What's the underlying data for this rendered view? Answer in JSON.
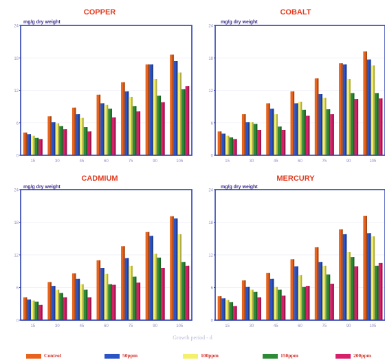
{
  "colors": {
    "axis_frame": "#2b3fae",
    "grid": "#f2f2fa",
    "tick_text": "#8f8fc8",
    "series": [
      "#e8641e",
      "#2b54c6",
      "#f4f069",
      "#2d8a36",
      "#d8206a"
    ],
    "title": "#e23a1e"
  },
  "x_axis_title": "Growth period - d",
  "legend": [
    {
      "label": "Control"
    },
    {
      "label": "50ppm"
    },
    {
      "label": "100ppm"
    },
    {
      "label": "150ppm"
    },
    {
      "label": "200ppm"
    }
  ],
  "chart_data": [
    {
      "type": "bar",
      "title": "COPPER",
      "ylabel": "mg/g dry weight",
      "xlabel": "Growth period - d",
      "categories": [
        "15",
        "30",
        "45",
        "60",
        "75",
        "90",
        "105"
      ],
      "ylim": [
        0,
        24
      ],
      "yticks": [
        "0",
        "6",
        "12",
        "18",
        "24"
      ],
      "series": [
        {
          "name": "Control",
          "values": [
            4.2,
            7.2,
            8.8,
            11.2,
            13.5,
            16.8,
            18.6
          ]
        },
        {
          "name": "50ppm",
          "values": [
            3.9,
            6.1,
            7.6,
            9.6,
            11.8,
            16.8,
            17.4
          ]
        },
        {
          "name": "100ppm",
          "values": [
            3.6,
            5.9,
            6.9,
            9.3,
            10.8,
            14.1,
            15.3
          ]
        },
        {
          "name": "150ppm",
          "values": [
            3.2,
            5.4,
            5.2,
            8.6,
            9.1,
            11.0,
            12.2
          ]
        },
        {
          "name": "200ppm",
          "values": [
            3.0,
            4.8,
            4.4,
            7.0,
            8.1,
            9.8,
            12.8
          ]
        }
      ]
    },
    {
      "type": "bar",
      "title": "COBALT",
      "ylabel": "mg/g dry weight",
      "xlabel": "Growth period - d",
      "categories": [
        "15",
        "30",
        "45",
        "60",
        "75",
        "90",
        "105"
      ],
      "ylim": [
        0,
        24
      ],
      "yticks": [
        "0",
        "6",
        "12",
        "18",
        "24"
      ],
      "series": [
        {
          "name": "Control",
          "values": [
            4.4,
            7.6,
            9.6,
            11.8,
            14.2,
            17.0,
            19.2
          ]
        },
        {
          "name": "50ppm",
          "values": [
            4.0,
            6.1,
            8.6,
            9.6,
            11.3,
            16.8,
            17.7
          ]
        },
        {
          "name": "100ppm",
          "values": [
            3.6,
            6.1,
            7.6,
            9.9,
            10.6,
            14.1,
            16.6
          ]
        },
        {
          "name": "150ppm",
          "values": [
            3.3,
            5.8,
            5.3,
            8.4,
            8.5,
            11.5,
            11.5
          ]
        },
        {
          "name": "200ppm",
          "values": [
            3.0,
            4.7,
            4.7,
            7.3,
            7.6,
            10.4,
            10.5
          ]
        }
      ]
    },
    {
      "type": "bar",
      "title": "CADMIUM",
      "ylabel": "mg/g dry weight",
      "xlabel": "Growth period - d",
      "categories": [
        "15",
        "30",
        "45",
        "60",
        "75",
        "90",
        "105"
      ],
      "ylim": [
        0,
        24
      ],
      "yticks": [
        "0",
        "6",
        "12",
        "18",
        "24"
      ],
      "series": [
        {
          "name": "Control",
          "values": [
            4.2,
            7.0,
            8.6,
            11.0,
            13.6,
            16.2,
            19.1
          ]
        },
        {
          "name": "50ppm",
          "values": [
            3.8,
            6.3,
            7.6,
            9.6,
            11.4,
            15.5,
            18.7
          ]
        },
        {
          "name": "100ppm",
          "values": [
            3.6,
            5.6,
            6.6,
            8.5,
            10.0,
            12.2,
            15.8
          ]
        },
        {
          "name": "150ppm",
          "values": [
            3.4,
            5.0,
            5.6,
            6.6,
            8.0,
            11.5,
            10.7
          ]
        },
        {
          "name": "200ppm",
          "values": [
            2.8,
            4.2,
            4.2,
            6.5,
            6.9,
            9.6,
            10.0
          ]
        }
      ]
    },
    {
      "type": "bar",
      "title": "MERCURY",
      "ylabel": "mg/g dry weight",
      "xlabel": "Growth period - d",
      "categories": [
        "15",
        "30",
        "45",
        "60",
        "75",
        "90",
        "105"
      ],
      "ylim": [
        0,
        24
      ],
      "yticks": [
        "0",
        "6",
        "12",
        "18",
        "24"
      ],
      "series": [
        {
          "name": "Control",
          "values": [
            4.4,
            7.3,
            8.7,
            11.2,
            13.4,
            16.7,
            19.2
          ]
        },
        {
          "name": "50ppm",
          "values": [
            4.0,
            6.1,
            7.6,
            9.9,
            10.7,
            15.8,
            16.0
          ]
        },
        {
          "name": "100ppm",
          "values": [
            3.7,
            5.6,
            6.1,
            8.3,
            10.0,
            12.5,
            15.4
          ]
        },
        {
          "name": "150ppm",
          "values": [
            3.3,
            5.2,
            5.6,
            6.1,
            8.4,
            11.6,
            10.0
          ]
        },
        {
          "name": "200ppm",
          "values": [
            2.6,
            4.2,
            4.5,
            6.3,
            6.7,
            9.9,
            10.5
          ]
        }
      ]
    }
  ]
}
